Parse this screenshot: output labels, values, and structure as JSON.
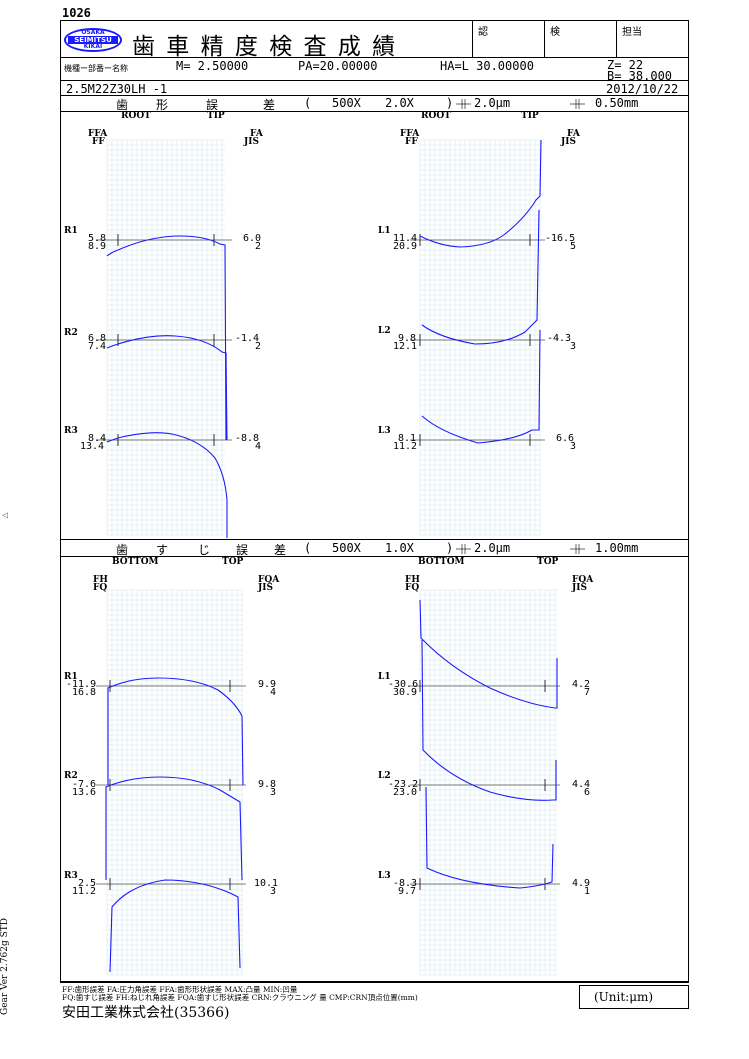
{
  "doc": {
    "page_no": "1026",
    "logo_lines": [
      "OSAKA",
      "SEIMITSU",
      "KIKAI"
    ],
    "title": "歯 車 精 度 検 査 成 績",
    "stamps": [
      "認",
      "検",
      "担当"
    ],
    "part_label": "機種ー部番ー名称",
    "params": {
      "module": "M= 2.50000",
      "pa": "PA=20.00000",
      "ha": "HA=L 30.00000",
      "z": "Z= 22",
      "b": "B= 38.000"
    },
    "part_no": "2.5M22Z30LH -1",
    "date": "2012/10/22",
    "side_version": "Gear Ver 2.762g STD",
    "side_mark": "◁"
  },
  "profile": {
    "title_chars": [
      "歯",
      "形",
      "誤",
      "差"
    ],
    "paren_open": "(",
    "mag": "500X",
    "mag2": "2.0X",
    "paren_close": ")",
    "scale_um": "2.0μm",
    "scale_mm": "0.50mm",
    "root": "ROOT",
    "tip": "TIP",
    "left_head": [
      "FFA",
      "FF"
    ],
    "right_head": [
      "FA",
      "JIS"
    ],
    "traces": [
      {
        "id": "R1",
        "a": "5.8",
        "b": "8.9",
        "c": "6.0",
        "d": "2"
      },
      {
        "id": "R2",
        "a": "6.8",
        "b": "7.4",
        "c": "-1.4",
        "d": "2"
      },
      {
        "id": "R3",
        "a": "8.4",
        "b": "13.4",
        "c": "-8.8",
        "d": "4"
      },
      {
        "id": "L1",
        "a": "11.4",
        "b": "20.9",
        "c": "-16.5",
        "d": "5"
      },
      {
        "id": "L2",
        "a": "9.8",
        "b": "12.1",
        "c": "-4.3",
        "d": "3"
      },
      {
        "id": "L3",
        "a": "8.1",
        "b": "11.2",
        "c": "6.6",
        "d": "3"
      }
    ]
  },
  "lead": {
    "title_chars": [
      "歯",
      "す",
      "じ",
      "誤",
      "差"
    ],
    "paren_open": "(",
    "mag": "500X",
    "mag2": "1.0X",
    "paren_close": ")",
    "scale_um": "2.0μm",
    "scale_mm": "1.00mm",
    "bottom": "BOTTOM",
    "top": "TOP",
    "left_head": [
      "FH",
      "FQ"
    ],
    "right_head": [
      "FQA",
      "JIS"
    ],
    "traces": [
      {
        "id": "R1",
        "a": "-11.9",
        "b": "16.8",
        "c": "9.9",
        "d": "4"
      },
      {
        "id": "R2",
        "a": "-7.6",
        "b": "13.6",
        "c": "9.8",
        "d": "3"
      },
      {
        "id": "R3",
        "a": "2.5",
        "b": "11.2",
        "c": "10.1",
        "d": "3"
      },
      {
        "id": "L1",
        "a": "-30.6",
        "b": "30.9",
        "c": "4.2",
        "d": "7"
      },
      {
        "id": "L2",
        "a": "-23.2",
        "b": "23.0",
        "c": "4.4",
        "d": "6"
      },
      {
        "id": "L3",
        "a": "-8.3",
        "b": "9.7",
        "c": "4.9",
        "d": "1"
      }
    ]
  },
  "footer": {
    "legend1": "FF:歯形誤差 FA:圧力角誤差 FFA:歯形形状誤差 MAX:凸量 MIN:凹量",
    "legend2": "FQ:歯すじ誤差 FH:ねじれ角誤差 FQA:歯すじ形状誤差 CRN:クラウニング 量 CMP:CRN頂点位置(mm)",
    "unit": "(Unit:μm)",
    "company": "安田工業株式会社(35366)"
  },
  "colors": {
    "trace": "#1a1aff",
    "grid": "#cfe6ee",
    "line": "#000000"
  }
}
